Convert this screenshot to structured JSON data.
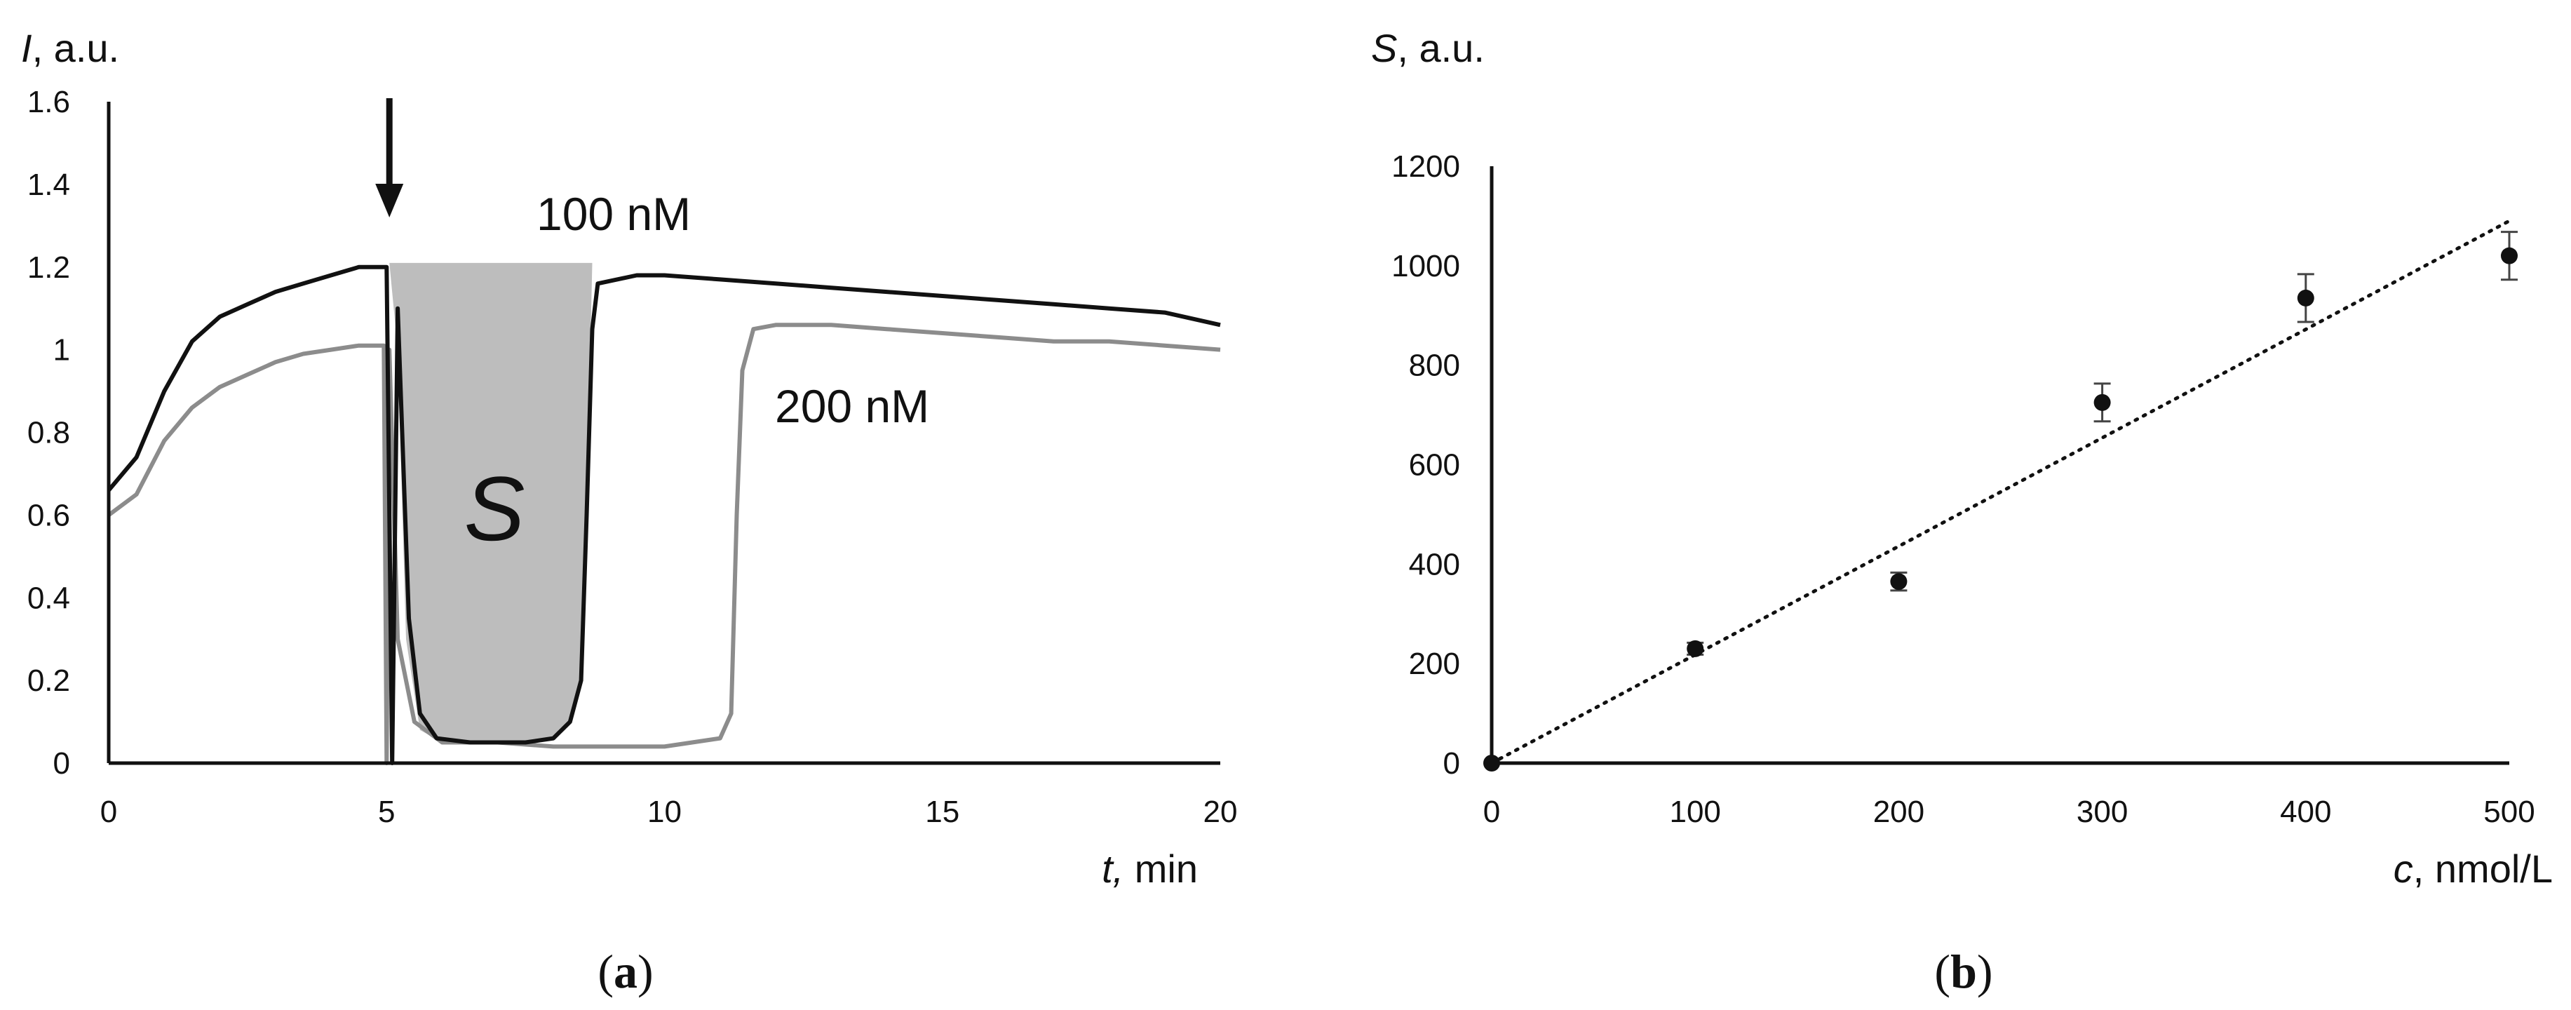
{
  "chart_data": [
    {
      "type": "line",
      "panel_label_open": "(",
      "panel_label_letter": "a",
      "panel_label_close": ")",
      "ylabel_var": "I",
      "ylabel_rest": ", a.u.",
      "xlabel_var": "t,",
      "xlabel_rest": " min",
      "xlim": [
        0,
        20
      ],
      "ylim": [
        0,
        1.6
      ],
      "x_ticks": [
        "0",
        "5",
        "10",
        "15",
        "20"
      ],
      "y_ticks": [
        "0",
        "0.2",
        "0.4",
        "0.6",
        "0.8",
        "1",
        "1.2",
        "1.4",
        "1.6"
      ],
      "annotations": {
        "shaded_area": "S",
        "arrow_x": 5.05
      },
      "series": [
        {
          "name": "100 nM",
          "color": "#111111",
          "points": [
            [
              0,
              0.66
            ],
            [
              0.5,
              0.74
            ],
            [
              1,
              0.9
            ],
            [
              1.5,
              1.02
            ],
            [
              2,
              1.08
            ],
            [
              2.5,
              1.11
            ],
            [
              3,
              1.14
            ],
            [
              3.5,
              1.16
            ],
            [
              4,
              1.18
            ],
            [
              4.5,
              1.2
            ],
            [
              5.0,
              1.2
            ],
            [
              5.1,
              0.0
            ],
            [
              5.2,
              1.1
            ],
            [
              5.4,
              0.35
            ],
            [
              5.6,
              0.12
            ],
            [
              5.9,
              0.06
            ],
            [
              6.5,
              0.05
            ],
            [
              7,
              0.05
            ],
            [
              7.5,
              0.05
            ],
            [
              8,
              0.06
            ],
            [
              8.3,
              0.1
            ],
            [
              8.5,
              0.2
            ],
            [
              8.6,
              0.6
            ],
            [
              8.7,
              1.05
            ],
            [
              8.8,
              1.16
            ],
            [
              9.5,
              1.18
            ],
            [
              10,
              1.18
            ],
            [
              11,
              1.17
            ],
            [
              12,
              1.16
            ],
            [
              13,
              1.15
            ],
            [
              14,
              1.14
            ],
            [
              15,
              1.13
            ],
            [
              16,
              1.12
            ],
            [
              17,
              1.11
            ],
            [
              18,
              1.1
            ],
            [
              19,
              1.09
            ],
            [
              20,
              1.06
            ]
          ]
        },
        {
          "name": "200 nM",
          "color": "#8c8c8c",
          "points": [
            [
              0,
              0.6
            ],
            [
              0.5,
              0.65
            ],
            [
              1,
              0.78
            ],
            [
              1.5,
              0.86
            ],
            [
              2,
              0.91
            ],
            [
              2.5,
              0.94
            ],
            [
              3,
              0.97
            ],
            [
              3.5,
              0.99
            ],
            [
              4,
              1.0
            ],
            [
              4.5,
              1.01
            ],
            [
              4.95,
              1.01
            ],
            [
              5.0,
              0.0
            ],
            [
              5.05,
              1.0
            ],
            [
              5.2,
              0.3
            ],
            [
              5.5,
              0.1
            ],
            [
              6,
              0.05
            ],
            [
              7,
              0.05
            ],
            [
              8,
              0.04
            ],
            [
              9,
              0.04
            ],
            [
              10,
              0.04
            ],
            [
              10.5,
              0.05
            ],
            [
              11,
              0.06
            ],
            [
              11.2,
              0.12
            ],
            [
              11.3,
              0.6
            ],
            [
              11.4,
              0.95
            ],
            [
              11.6,
              1.05
            ],
            [
              12,
              1.06
            ],
            [
              13,
              1.06
            ],
            [
              14,
              1.05
            ],
            [
              15,
              1.04
            ],
            [
              16,
              1.03
            ],
            [
              17,
              1.02
            ],
            [
              18,
              1.02
            ],
            [
              19,
              1.01
            ],
            [
              20,
              1.0
            ]
          ]
        }
      ]
    },
    {
      "type": "scatter",
      "panel_label_open": "(",
      "panel_label_letter": "b",
      "panel_label_close": ")",
      "ylabel_var": "S",
      "ylabel_rest": ", a.u.",
      "xlabel_var": "c",
      "xlabel_rest": ", nmol/L",
      "xlim": [
        0,
        500
      ],
      "ylim": [
        0,
        1200
      ],
      "x_ticks": [
        "0",
        "100",
        "200",
        "300",
        "400",
        "500"
      ],
      "y_ticks": [
        "0",
        "200",
        "400",
        "600",
        "800",
        "1000",
        "1200"
      ],
      "points": [
        {
          "x": 0,
          "y": 0,
          "err": 0
        },
        {
          "x": 100,
          "y": 230,
          "err": 12
        },
        {
          "x": 200,
          "y": 365,
          "err": 18
        },
        {
          "x": 300,
          "y": 725,
          "err": 38
        },
        {
          "x": 400,
          "y": 935,
          "err": 48
        },
        {
          "x": 500,
          "y": 1020,
          "err": 48
        }
      ],
      "trendline": {
        "style": "dotted",
        "from": [
          0,
          0
        ],
        "to": [
          500,
          1090
        ]
      }
    }
  ]
}
